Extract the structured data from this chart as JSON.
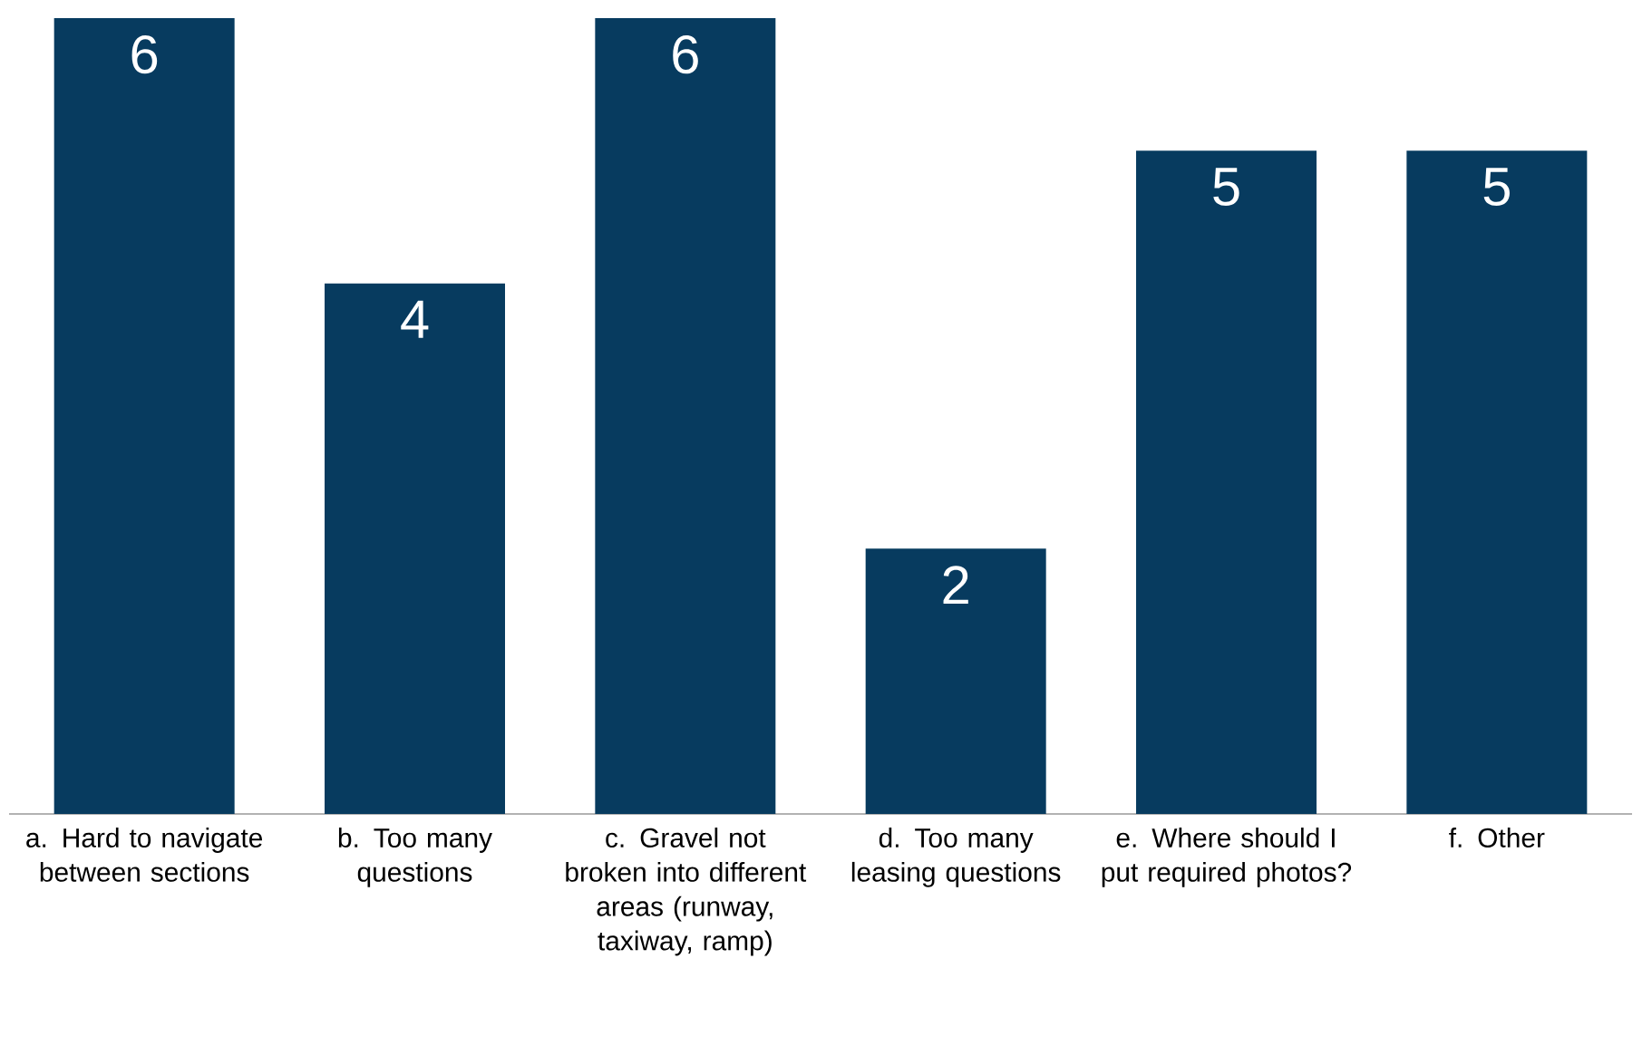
{
  "chart_data": {
    "type": "bar",
    "categories": [
      "a. Hard to navigate between sections",
      "b. Too many questions",
      "c. Gravel not broken into different areas (runway, taxiway, ramp)",
      "d. Too many leasing questions",
      "e. Where should I put required photos?",
      "f. Other"
    ],
    "values": [
      6,
      4,
      6,
      2,
      5,
      5
    ],
    "color": "#073b5f",
    "ylim": [
      0,
      6
    ],
    "data_labels": true,
    "tick_labels": "x",
    "grid": false
  }
}
